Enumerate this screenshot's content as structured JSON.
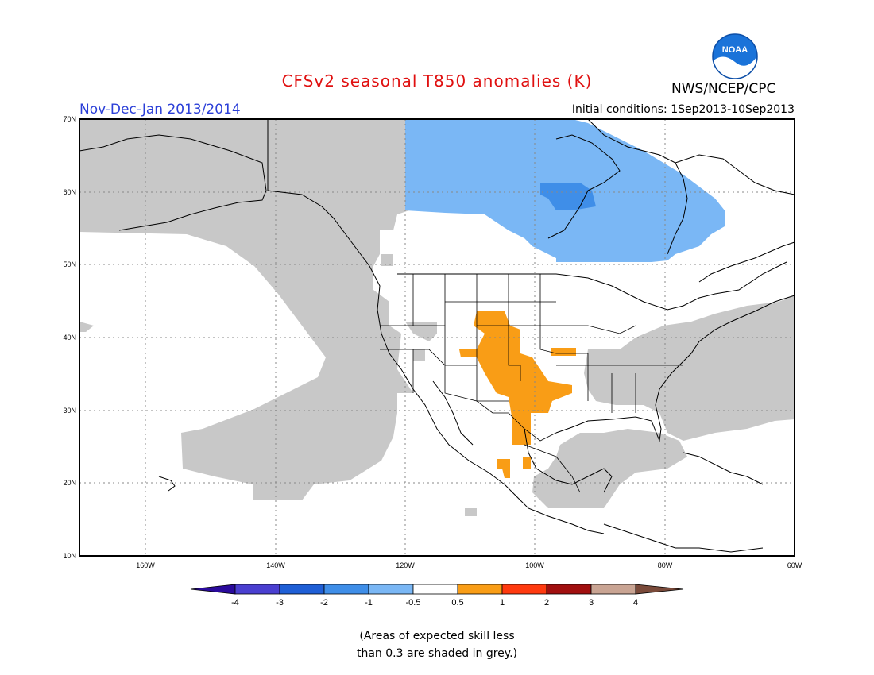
{
  "title": "CFSv2 seasonal T850 anomalies (K)",
  "agency": "NWS/NCEP/CPC",
  "logo_text": "NOAA",
  "period": "Nov-Dec-Jan 2013/2014",
  "initial_conditions": "Initial conditions: 1Sep2013-10Sep2013",
  "lat_labels": [
    "70N",
    "60N",
    "50N",
    "40N",
    "30N",
    "20N",
    "10N"
  ],
  "lon_labels": [
    "160W",
    "140W",
    "120W",
    "100W",
    "80W",
    "60W"
  ],
  "colorbar": {
    "tick_labels": [
      "-4",
      "-3",
      "-2",
      "-1",
      "-0.5",
      "0.5",
      "1",
      "2",
      "3",
      "4"
    ],
    "colors": [
      "#2a0a9c",
      "#4a3fd0",
      "#1f5fd6",
      "#3f8ee8",
      "#7ab7f5",
      "#ffffff",
      "#f99d16",
      "#ff3a0f",
      "#a10f0f",
      "#c9a493",
      "#7a4a3a"
    ]
  },
  "legend_colors": {
    "grey_low_skill": "#c8c8c8",
    "cool_-1_-0.5": "#7ab7f5",
    "cool_-2_-1": "#3f8ee8",
    "warm_0.5_1": "#f99d16"
  },
  "note_line1": "(Areas of expected skill less",
  "note_line2": "than 0.3 are shaded in grey.)"
}
